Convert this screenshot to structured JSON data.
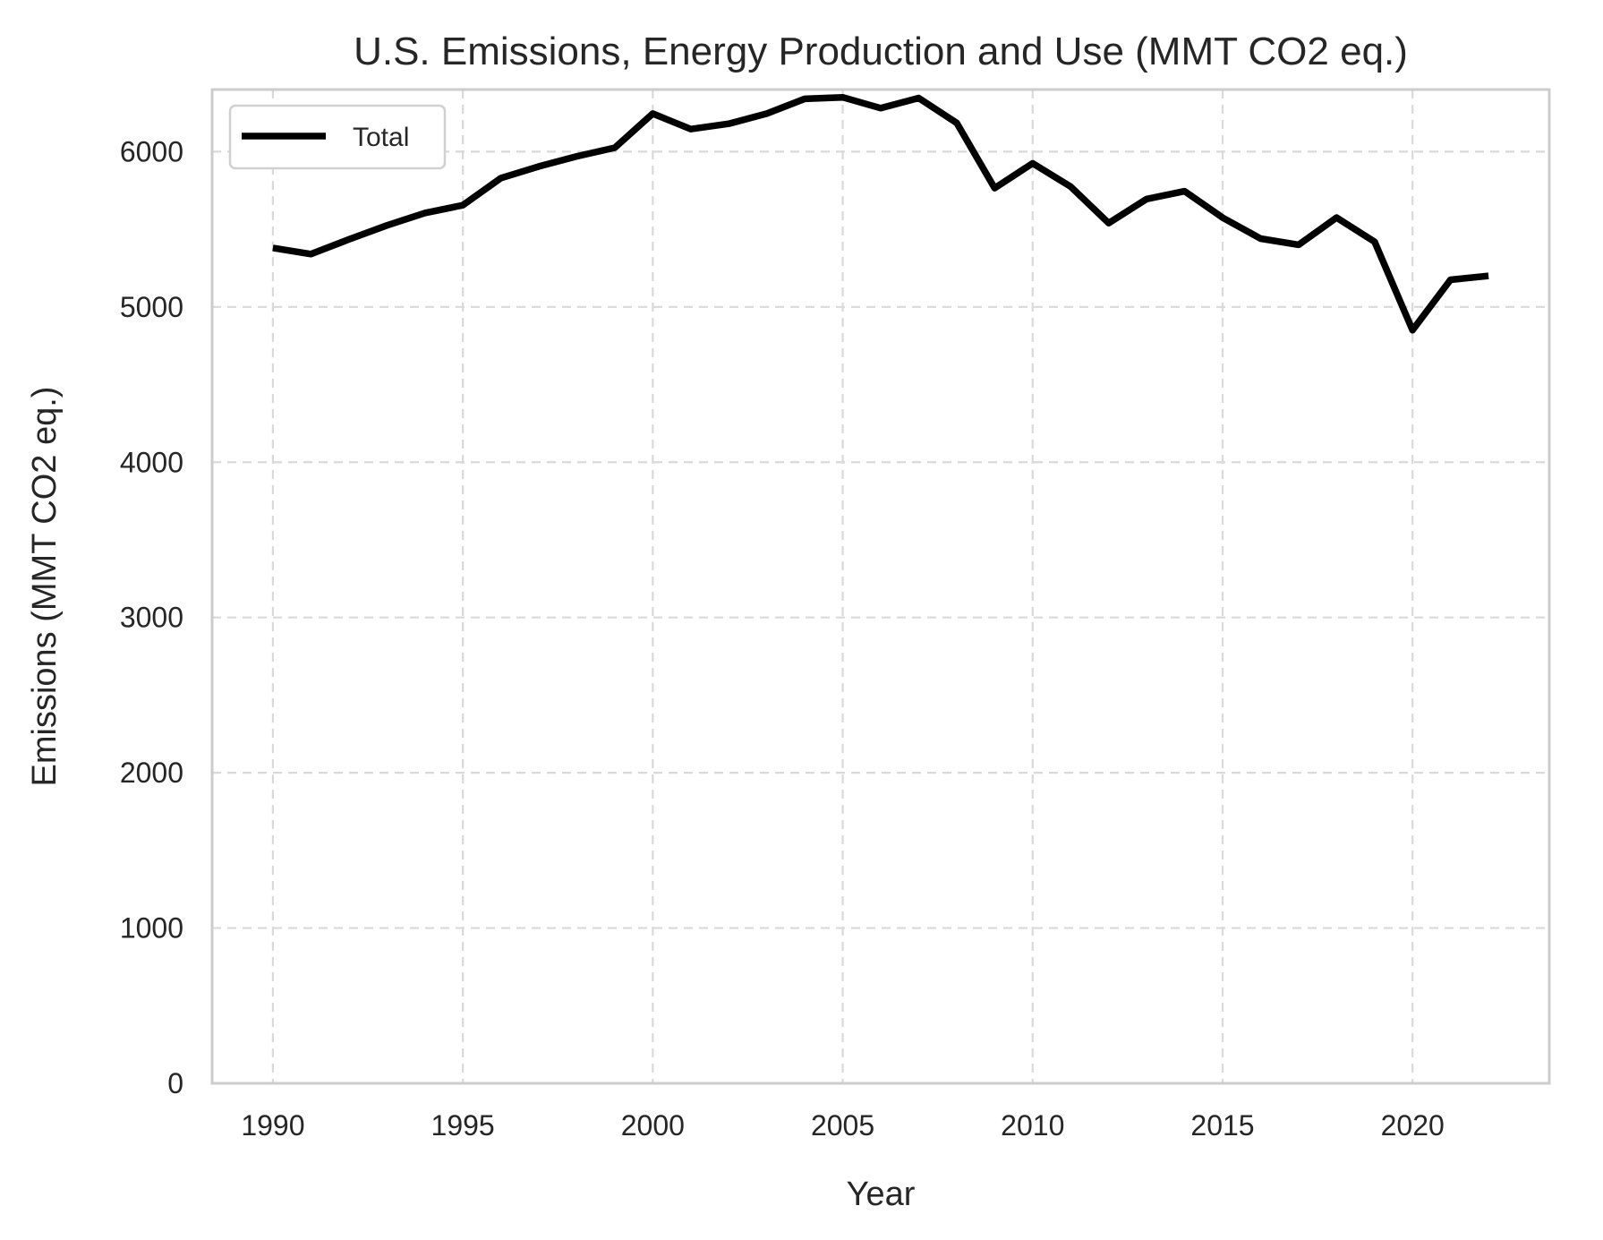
{
  "chart_data": {
    "type": "line",
    "title": "U.S. Emissions, Energy Production and Use (MMT CO2 eq.)",
    "xlabel": "Year",
    "ylabel": "Emissions (MMT CO2 eq.)",
    "xlim": [
      1988.4,
      2023.6
    ],
    "ylim": [
      0,
      6400
    ],
    "xticks": [
      1990,
      1995,
      2000,
      2005,
      2010,
      2015,
      2020
    ],
    "yticks": [
      0,
      1000,
      2000,
      3000,
      4000,
      5000,
      6000
    ],
    "grid": true,
    "legend_position": "upper-left",
    "x": [
      1990,
      1991,
      1992,
      1993,
      1994,
      1995,
      1996,
      1997,
      1998,
      1999,
      2000,
      2001,
      2002,
      2003,
      2004,
      2005,
      2006,
      2007,
      2008,
      2009,
      2010,
      2011,
      2012,
      2013,
      2014,
      2015,
      2016,
      2017,
      2018,
      2019,
      2020,
      2021,
      2022
    ],
    "series": [
      {
        "name": "Total",
        "color": "#000000",
        "values": [
          5380,
          5340,
          5435,
          5525,
          5605,
          5655,
          5830,
          5905,
          5970,
          6025,
          6245,
          6145,
          6180,
          6245,
          6340,
          6350,
          6280,
          6345,
          6185,
          5765,
          5925,
          5775,
          5540,
          5695,
          5745,
          5575,
          5440,
          5400,
          5575,
          5420,
          4850,
          5175,
          5200
        ]
      }
    ]
  }
}
